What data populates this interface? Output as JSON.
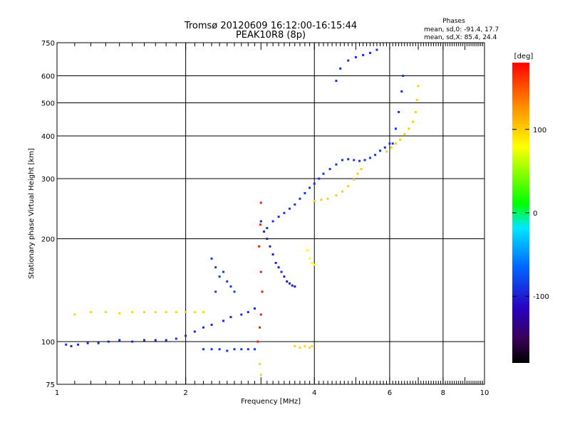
{
  "chart_data": {
    "type": "scatter",
    "title": "Tromsø 20120609 16:12:00-16:15:44",
    "subtitle": "PEAK10R8 (8p)",
    "xlabel": "Frequency [MHz]",
    "ylabel": "Stationary phase Virtual Height [km]",
    "x_scale": "log",
    "y_scale": "log",
    "xlim": [
      1,
      10
    ],
    "ylim": [
      75,
      750
    ],
    "x_ticks": [
      1,
      2,
      4,
      6,
      8,
      10
    ],
    "x_minor_ticks": [
      3,
      5,
      7,
      9
    ],
    "y_ticks": [
      75,
      100,
      200,
      300,
      400,
      500,
      600,
      750
    ],
    "grid": true,
    "phase_info": {
      "heading": "Phases",
      "line_o": "mean, sd,0: -91.4, 17.7",
      "line_x": "mean, sd,X:  85.4, 24.4"
    },
    "colorbar": {
      "label": "[deg]",
      "range": [
        -180,
        180
      ],
      "ticks": [
        100,
        0,
        -100
      ]
    },
    "series": [
      {
        "phase": -95,
        "points": [
          [
            1.05,
            98
          ],
          [
            1.08,
            97
          ],
          [
            1.12,
            98
          ],
          [
            1.18,
            99
          ],
          [
            1.25,
            99
          ],
          [
            1.32,
            100
          ],
          [
            1.4,
            101
          ],
          [
            1.5,
            100
          ],
          [
            1.6,
            101
          ],
          [
            1.7,
            101
          ],
          [
            1.8,
            101
          ],
          [
            1.9,
            102
          ],
          [
            2.0,
            104
          ],
          [
            2.1,
            107
          ],
          [
            2.2,
            110
          ],
          [
            2.3,
            112
          ],
          [
            2.45,
            115
          ],
          [
            2.55,
            118
          ],
          [
            2.7,
            120
          ],
          [
            2.8,
            122
          ],
          [
            2.9,
            125
          ]
        ]
      },
      {
        "phase": -90,
        "points": [
          [
            3.1,
            215
          ],
          [
            3.2,
            225
          ],
          [
            3.3,
            232
          ],
          [
            3.4,
            238
          ],
          [
            3.5,
            245
          ],
          [
            3.6,
            252
          ],
          [
            3.7,
            262
          ],
          [
            3.8,
            272
          ],
          [
            3.9,
            282
          ],
          [
            4.0,
            290
          ],
          [
            4.1,
            300
          ],
          [
            4.2,
            310
          ],
          [
            4.35,
            320
          ],
          [
            4.5,
            330
          ],
          [
            4.65,
            340
          ],
          [
            4.8,
            342
          ],
          [
            4.95,
            340
          ],
          [
            5.1,
            338
          ],
          [
            5.25,
            340
          ],
          [
            5.4,
            345
          ],
          [
            5.55,
            352
          ],
          [
            5.7,
            362
          ],
          [
            5.85,
            370
          ],
          [
            6.0,
            380
          ]
        ]
      },
      {
        "phase": -100,
        "points": [
          [
            3.0,
            225
          ],
          [
            3.05,
            210
          ],
          [
            3.1,
            200
          ],
          [
            3.15,
            190
          ],
          [
            3.2,
            180
          ],
          [
            3.25,
            170
          ],
          [
            3.3,
            165
          ],
          [
            3.35,
            160
          ],
          [
            3.4,
            155
          ],
          [
            3.45,
            150
          ],
          [
            3.5,
            148
          ],
          [
            3.55,
            146
          ],
          [
            3.6,
            145
          ]
        ]
      },
      {
        "phase": -85,
        "points": [
          [
            2.35,
            140
          ],
          [
            2.4,
            155
          ],
          [
            2.45,
            160
          ],
          [
            2.5,
            150
          ],
          [
            2.55,
            145
          ],
          [
            2.6,
            140
          ],
          [
            2.3,
            175
          ],
          [
            2.35,
            165
          ]
        ]
      },
      {
        "phase": -90,
        "points": [
          [
            2.2,
            95
          ],
          [
            2.3,
            95
          ],
          [
            2.4,
            95
          ],
          [
            2.5,
            94
          ],
          [
            2.6,
            95
          ],
          [
            2.7,
            95
          ],
          [
            2.8,
            95
          ],
          [
            2.9,
            95
          ]
        ]
      },
      {
        "phase": -92,
        "points": [
          [
            4.5,
            580
          ],
          [
            4.6,
            630
          ],
          [
            4.8,
            665
          ],
          [
            5.0,
            680
          ],
          [
            5.2,
            690
          ],
          [
            5.4,
            700
          ],
          [
            5.6,
            715
          ]
        ]
      },
      {
        "phase": -90,
        "points": [
          [
            6.1,
            380
          ],
          [
            6.2,
            420
          ],
          [
            6.3,
            470
          ],
          [
            6.4,
            540
          ],
          [
            6.45,
            600
          ]
        ]
      },
      {
        "phase": 95,
        "points": [
          [
            1.1,
            120
          ],
          [
            1.2,
            122
          ],
          [
            1.3,
            122
          ],
          [
            1.4,
            121
          ],
          [
            1.5,
            122
          ],
          [
            1.6,
            122
          ],
          [
            1.7,
            122
          ],
          [
            1.8,
            122
          ],
          [
            1.9,
            122
          ],
          [
            2.0,
            122
          ],
          [
            2.1,
            122
          ],
          [
            2.2,
            122
          ]
        ]
      },
      {
        "phase": 100,
        "points": [
          [
            4.0,
            258
          ],
          [
            4.15,
            260
          ],
          [
            4.3,
            262
          ],
          [
            4.5,
            268
          ],
          [
            4.65,
            275
          ],
          [
            4.8,
            285
          ],
          [
            4.95,
            298
          ],
          [
            5.05,
            310
          ],
          [
            5.15,
            320
          ]
        ]
      },
      {
        "phase": 100,
        "points": [
          [
            5.9,
            360
          ],
          [
            6.05,
            370
          ],
          [
            6.2,
            380
          ],
          [
            6.35,
            390
          ],
          [
            6.5,
            405
          ],
          [
            6.65,
            420
          ],
          [
            6.8,
            440
          ],
          [
            6.9,
            470
          ],
          [
            6.95,
            510
          ],
          [
            7.0,
            560
          ]
        ]
      },
      {
        "phase": 95,
        "points": [
          [
            3.6,
            97
          ],
          [
            3.7,
            96
          ],
          [
            3.8,
            97
          ],
          [
            3.9,
            96
          ],
          [
            3.95,
            97
          ]
        ]
      },
      {
        "phase": 80,
        "points": [
          [
            3.85,
            185
          ],
          [
            3.9,
            175
          ],
          [
            3.95,
            170
          ],
          [
            4.0,
            168
          ]
        ]
      },
      {
        "phase": 170,
        "points": [
          [
            2.95,
            100
          ],
          [
            2.98,
            110
          ],
          [
            3.0,
            120
          ],
          [
            3.02,
            140
          ],
          [
            3.0,
            160
          ],
          [
            2.97,
            190
          ],
          [
            2.99,
            220
          ],
          [
            3.0,
            255
          ]
        ]
      },
      {
        "phase": 60,
        "points": [
          [
            3.0,
            80
          ],
          [
            2.98,
            86
          ]
        ]
      }
    ]
  }
}
